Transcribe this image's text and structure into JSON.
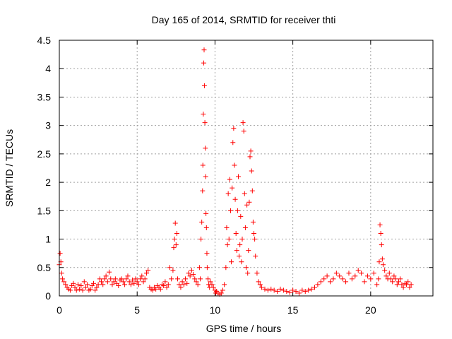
{
  "chart_data": {
    "type": "scatter",
    "title": "Day 165 of 2014, SRMTID for receiver thti",
    "xlabel": "GPS time / hours",
    "ylabel": "SRMTID / TECUs",
    "xlim": [
      0,
      24
    ],
    "ylim": [
      0,
      4.5
    ],
    "x_ticks": [
      0,
      5,
      10,
      15,
      20
    ],
    "x_tick_labels": [
      "0",
      "5",
      "10",
      "15",
      "20"
    ],
    "y_ticks": [
      0,
      0.5,
      1,
      1.5,
      2,
      2.5,
      3,
      3.5,
      4,
      4.5
    ],
    "y_tick_labels": [
      "0",
      "0.5",
      "1",
      "1.5",
      "2",
      "2.5",
      "3",
      "3.5",
      "4",
      "4.5"
    ],
    "grid": true,
    "marker": "+",
    "color": "#ff0000",
    "series": [
      {
        "name": "SRMTID",
        "x": [
          0.0,
          0.05,
          0.1,
          0.15,
          0.2,
          0.3,
          0.4,
          0.5,
          0.6,
          0.7,
          0.8,
          0.9,
          1.0,
          1.1,
          1.2,
          1.3,
          1.4,
          1.5,
          1.6,
          1.7,
          1.8,
          1.9,
          2.0,
          2.1,
          2.2,
          2.3,
          2.4,
          2.5,
          2.6,
          2.7,
          2.8,
          2.9,
          3.0,
          3.1,
          3.2,
          3.3,
          3.4,
          3.5,
          3.6,
          3.7,
          3.8,
          3.9,
          4.0,
          4.1,
          4.2,
          4.3,
          4.4,
          4.5,
          4.6,
          4.7,
          4.8,
          4.9,
          5.0,
          5.1,
          5.2,
          5.3,
          5.4,
          5.5,
          5.6,
          5.7,
          5.8,
          5.9,
          6.0,
          6.1,
          6.2,
          6.3,
          6.4,
          6.5,
          6.6,
          6.7,
          6.8,
          6.9,
          7.0,
          7.1,
          7.2,
          7.3,
          7.35,
          7.4,
          7.45,
          7.5,
          7.55,
          7.6,
          7.7,
          7.8,
          7.9,
          8.0,
          8.1,
          8.2,
          8.3,
          8.4,
          8.5,
          8.6,
          8.7,
          8.8,
          8.9,
          9.0,
          9.05,
          9.1,
          9.15,
          9.2,
          9.22,
          9.25,
          9.28,
          9.3,
          9.32,
          9.35,
          9.38,
          9.4,
          9.42,
          9.45,
          9.48,
          9.5,
          9.55,
          9.6,
          9.65,
          9.7,
          9.8,
          9.9,
          10.0,
          10.05,
          10.1,
          10.2,
          10.3,
          10.4,
          10.5,
          10.6,
          10.7,
          10.75,
          10.8,
          10.85,
          10.9,
          10.95,
          11.0,
          11.05,
          11.1,
          11.15,
          11.2,
          11.25,
          11.3,
          11.35,
          11.4,
          11.45,
          11.5,
          11.55,
          11.6,
          11.65,
          11.7,
          11.75,
          11.8,
          11.85,
          11.9,
          11.95,
          12.0,
          12.05,
          12.1,
          12.15,
          12.2,
          12.25,
          12.3,
          12.35,
          12.4,
          12.45,
          12.5,
          12.55,
          12.6,
          12.7,
          12.8,
          12.9,
          13.0,
          13.2,
          13.4,
          13.6,
          13.8,
          14.0,
          14.2,
          14.4,
          14.6,
          14.8,
          15.0,
          15.2,
          15.4,
          15.6,
          15.8,
          16.0,
          16.2,
          16.4,
          16.6,
          16.8,
          17.0,
          17.2,
          17.4,
          17.6,
          17.8,
          18.0,
          18.2,
          18.4,
          18.6,
          18.8,
          19.0,
          19.2,
          19.4,
          19.6,
          19.8,
          20.0,
          20.2,
          20.4,
          20.5,
          20.55,
          20.6,
          20.65,
          20.7,
          20.75,
          20.8,
          20.9,
          21.0,
          21.1,
          21.2,
          21.3,
          21.4,
          21.5,
          21.6,
          21.7,
          21.8,
          21.9,
          22.0,
          22.1,
          22.2,
          22.3,
          22.4,
          22.5,
          22.6
        ],
        "y": [
          0.55,
          0.75,
          0.6,
          0.4,
          0.3,
          0.25,
          0.2,
          0.15,
          0.12,
          0.1,
          0.18,
          0.22,
          0.15,
          0.1,
          0.2,
          0.12,
          0.18,
          0.1,
          0.25,
          0.15,
          0.2,
          0.1,
          0.12,
          0.18,
          0.22,
          0.1,
          0.15,
          0.2,
          0.3,
          0.25,
          0.2,
          0.3,
          0.35,
          0.25,
          0.42,
          0.3,
          0.2,
          0.25,
          0.3,
          0.22,
          0.18,
          0.28,
          0.3,
          0.25,
          0.2,
          0.3,
          0.35,
          0.25,
          0.2,
          0.28,
          0.22,
          0.3,
          0.25,
          0.2,
          0.3,
          0.35,
          0.25,
          0.3,
          0.4,
          0.45,
          0.15,
          0.12,
          0.1,
          0.15,
          0.12,
          0.18,
          0.15,
          0.12,
          0.2,
          0.18,
          0.25,
          0.15,
          0.2,
          0.5,
          0.3,
          0.45,
          0.85,
          1.0,
          1.28,
          0.9,
          1.1,
          0.3,
          0.2,
          0.15,
          0.25,
          0.2,
          0.3,
          0.22,
          0.4,
          0.35,
          0.45,
          0.38,
          0.3,
          0.25,
          0.2,
          0.5,
          0.3,
          1.0,
          1.3,
          1.85,
          2.3,
          3.2,
          4.1,
          4.33,
          3.7,
          3.05,
          2.6,
          2.1,
          1.45,
          1.2,
          0.75,
          0.5,
          0.3,
          0.2,
          0.15,
          0.25,
          0.2,
          0.15,
          0.1,
          0.05,
          0.08,
          0.05,
          0.03,
          0.05,
          0.1,
          0.2,
          0.5,
          1.2,
          0.9,
          1.8,
          1.0,
          2.05,
          1.5,
          0.6,
          1.9,
          2.7,
          2.95,
          2.3,
          1.7,
          1.1,
          0.8,
          1.5,
          2.1,
          0.7,
          0.9,
          1.4,
          0.6,
          1.0,
          3.05,
          2.9,
          1.8,
          1.2,
          0.5,
          1.6,
          0.4,
          0.8,
          1.65,
          2.45,
          2.55,
          2.2,
          1.85,
          1.3,
          1.1,
          1.0,
          0.7,
          0.4,
          0.25,
          0.2,
          0.15,
          0.12,
          0.1,
          0.12,
          0.1,
          0.08,
          0.12,
          0.1,
          0.08,
          0.06,
          0.1,
          0.08,
          0.05,
          0.1,
          0.08,
          0.1,
          0.12,
          0.15,
          0.2,
          0.25,
          0.3,
          0.35,
          0.25,
          0.3,
          0.4,
          0.35,
          0.3,
          0.25,
          0.4,
          0.3,
          0.35,
          0.45,
          0.4,
          0.25,
          0.35,
          0.3,
          0.4,
          0.2,
          0.3,
          0.6,
          1.25,
          1.1,
          0.9,
          0.65,
          0.55,
          0.45,
          0.35,
          0.3,
          0.4,
          0.3,
          0.25,
          0.35,
          0.3,
          0.2,
          0.25,
          0.3,
          0.2,
          0.15,
          0.22,
          0.2,
          0.25,
          0.15,
          0.2
        ]
      }
    ]
  }
}
